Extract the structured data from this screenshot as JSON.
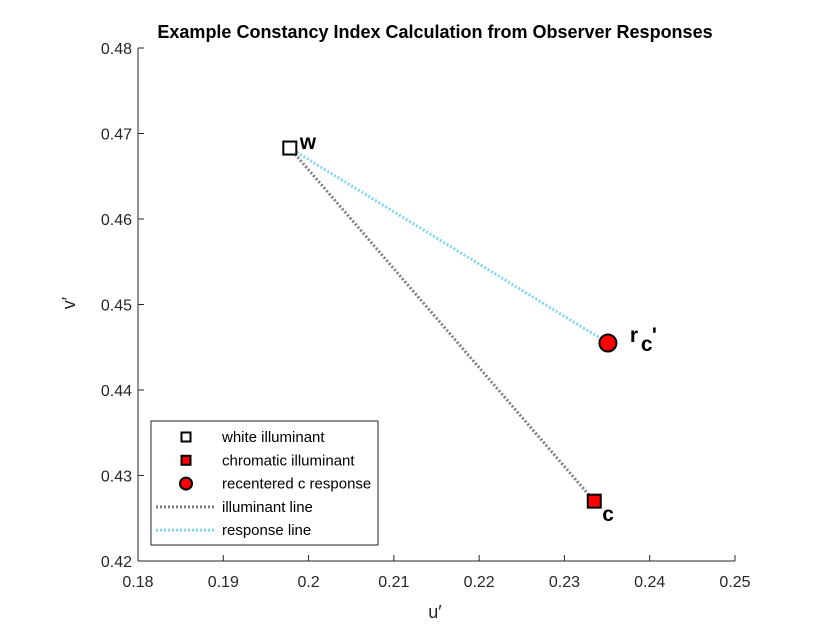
{
  "chart_data": {
    "type": "scatter",
    "title": "Example Constancy Index Calculation from Observer Responses",
    "xlabel": "u′",
    "ylabel": "v′",
    "xlim": [
      0.18,
      0.25
    ],
    "ylim": [
      0.42,
      0.48
    ],
    "xticks": [
      "0.18",
      "0.19",
      "0.2",
      "0.21",
      "0.22",
      "0.23",
      "0.24",
      "0.25"
    ],
    "yticks": [
      "0.42",
      "0.43",
      "0.44",
      "0.45",
      "0.46",
      "0.47",
      "0.48"
    ],
    "grid": false,
    "legend_location": "bottom-left",
    "points": [
      {
        "name": "white illuminant",
        "x": 0.1978,
        "y": 0.4683,
        "marker": "square",
        "color": "#ffffff",
        "edge": "#000000",
        "label": "w"
      },
      {
        "name": "chromatic illuminant",
        "x": 0.2335,
        "y": 0.427,
        "marker": "square",
        "color": "#ff0000",
        "edge": "#000000",
        "label": "c"
      },
      {
        "name": "recentered c response",
        "x": 0.2351,
        "y": 0.4455,
        "marker": "circle",
        "color": "#ff0000",
        "edge": "#000000",
        "label_main": "r",
        "label_sub": "c",
        "label_suffix": "'"
      }
    ],
    "lines": [
      {
        "name": "illuminant line",
        "from": [
          0.1978,
          0.4683
        ],
        "to": [
          0.2335,
          0.427
        ],
        "color": "#808080",
        "style": "dotted"
      },
      {
        "name": "response line",
        "from": [
          0.1978,
          0.4683
        ],
        "to": [
          0.2351,
          0.4455
        ],
        "color": "#80d8f0",
        "style": "dotted"
      }
    ]
  }
}
